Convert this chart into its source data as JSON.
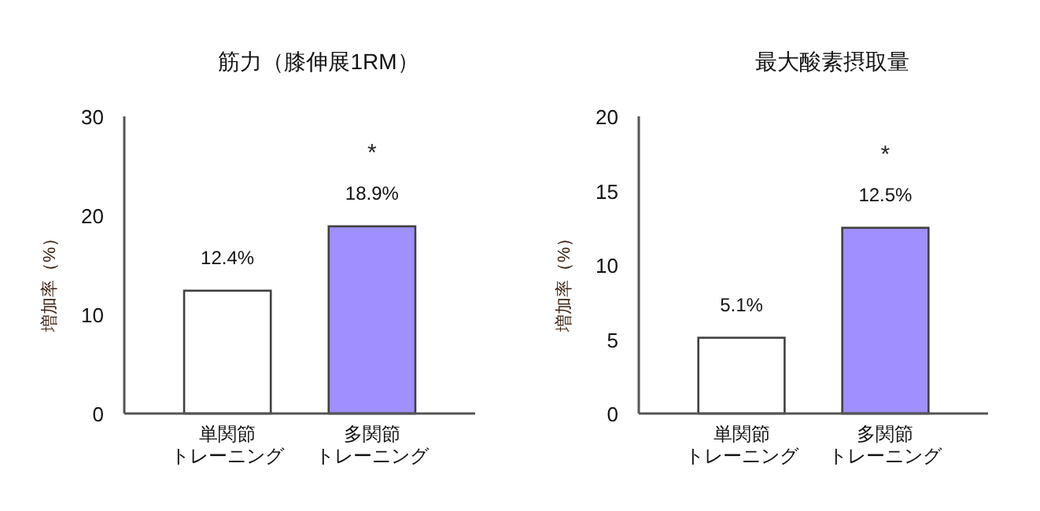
{
  "chart_data": [
    {
      "type": "bar",
      "title": "筋力（膝伸展1RM）",
      "ylabel": "増加率（%）",
      "categories": [
        "単関節トレーニング",
        "多関節トレーニング"
      ],
      "values": [
        12.4,
        18.9
      ],
      "colors": [
        "#ffffff",
        "#9f8fff"
      ],
      "value_labels": [
        "12.4%",
        "18.9%"
      ],
      "ylim": [
        0,
        30
      ],
      "yticks": [
        0,
        10,
        20,
        30
      ],
      "grid": false,
      "annotations": [
        "*"
      ]
    },
    {
      "type": "bar",
      "title": "最大酸素摂取量",
      "ylabel": "増加率（%）",
      "categories": [
        "単関節トレーニング",
        "多関節トレーニング"
      ],
      "values": [
        5.1,
        12.5
      ],
      "colors": [
        "#ffffff",
        "#9f8fff"
      ],
      "value_labels": [
        "5.1%",
        "12.5%"
      ],
      "ylim": [
        0,
        20
      ],
      "yticks": [
        0,
        5,
        10,
        15,
        20
      ],
      "grid": false,
      "annotations": [
        "*"
      ]
    }
  ]
}
